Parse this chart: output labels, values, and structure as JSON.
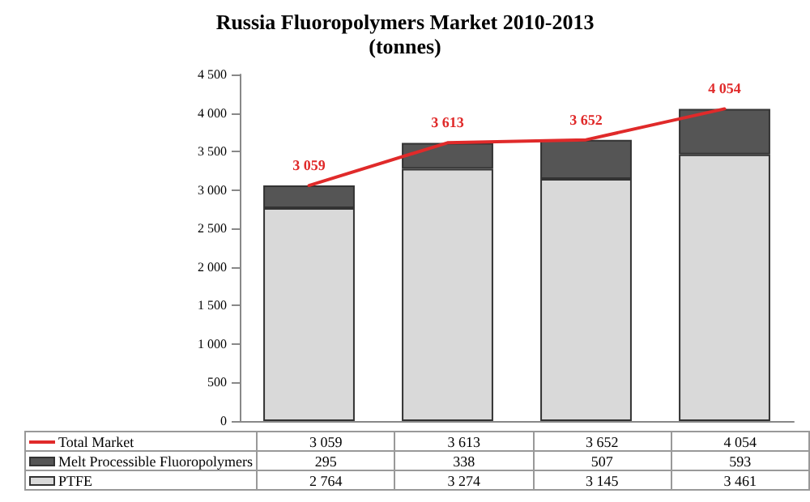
{
  "chart_data": {
    "type": "bar",
    "title": "Russia Fluoropolymers Market 2010-2013",
    "subtitle": "(tonnes)",
    "categories": [
      null,
      null,
      null,
      null
    ],
    "stacked": true,
    "series": [
      {
        "name": "PTFE",
        "color": "#d9d9d9",
        "values": [
          2764,
          3274,
          3145,
          3461
        ]
      },
      {
        "name": "Melt Processible Fluoropolymers",
        "color": "#555555",
        "values": [
          295,
          338,
          507,
          593
        ]
      },
      {
        "name": "Total Market",
        "type": "line",
        "color": "#e02a2a",
        "values": [
          3059,
          3613,
          3652,
          4054
        ],
        "value_labels": [
          "3 059",
          "3 613",
          "3 652",
          "4 054"
        ]
      }
    ],
    "totals": [
      "3 059",
      "3 613",
      "3 652",
      "4 054"
    ],
    "ylim": [
      0,
      4500
    ],
    "yticks": [
      {
        "value": 0,
        "label": "0"
      },
      {
        "value": 500,
        "label": "500"
      },
      {
        "value": 1000,
        "label": "1 000"
      },
      {
        "value": 1500,
        "label": "1 500"
      },
      {
        "value": 2000,
        "label": "2 000"
      },
      {
        "value": 2500,
        "label": "2 500"
      },
      {
        "value": 3000,
        "label": "3 000"
      },
      {
        "value": 3500,
        "label": "3 500"
      },
      {
        "value": 4000,
        "label": "4 000"
      },
      {
        "value": 4500,
        "label": "4 500"
      }
    ],
    "marker": "none",
    "legend": "bottom",
    "data_labels": true
  }
}
